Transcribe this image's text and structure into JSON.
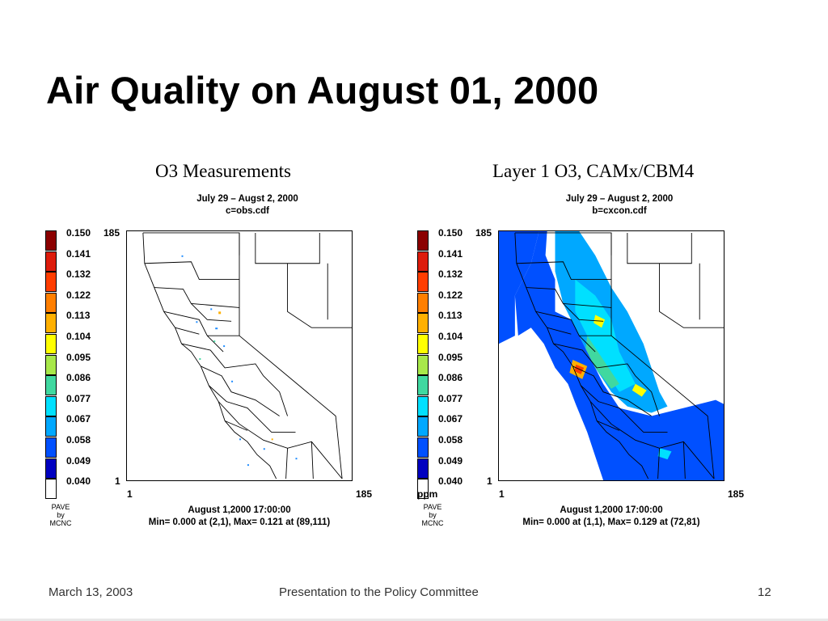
{
  "title": "Air Quality on August 01, 2000",
  "legend": {
    "ticks": [
      "0.150",
      "0.141",
      "0.132",
      "0.122",
      "0.113",
      "0.104",
      "0.095",
      "0.086",
      "0.077",
      "0.067",
      "0.058",
      "0.049",
      "0.040"
    ],
    "colors": [
      "#8b0000",
      "#dd1c0c",
      "#ff3d00",
      "#ff7f00",
      "#ffb000",
      "#ffff00",
      "#a8e84a",
      "#40d8a0",
      "#00e0ff",
      "#00a8ff",
      "#0050ff",
      "#0000c0",
      "#ffffff"
    ]
  },
  "panels": [
    {
      "title": "O3 Measurements",
      "subtitle_line1": "July 29 – Augst 2, 2000",
      "subtitle_line2": "c=obs.cdf",
      "y_top": "185",
      "y_bottom": "1",
      "x_left": "1",
      "x_right": "185",
      "unit": "",
      "credit": [
        "PAVE",
        "by",
        "MCNC"
      ],
      "caption_line1": "August 1,2000 17:00:00",
      "caption_line2": "Min=   0.000 at (2,1), Max=   0.121 at (89,111)"
    },
    {
      "title": "Layer 1 O3, CAMx/CBM4",
      "subtitle_line1": "July 29 – August 2, 2000",
      "subtitle_line2": "b=cxcon.cdf",
      "y_top": "185",
      "y_bottom": "1",
      "x_left": "1",
      "x_right": "185",
      "unit": "ppm",
      "credit": [
        "PAVE",
        "by",
        "MCNC"
      ],
      "caption_line1": "August 1,2000 17:00:00",
      "caption_line2": "Min=   0.000 at (1,1), Max=   0.129 at (72,81)"
    }
  ],
  "footer": {
    "date": "March 13, 2003",
    "center": "Presentation to the Policy Committee",
    "page": "12"
  }
}
